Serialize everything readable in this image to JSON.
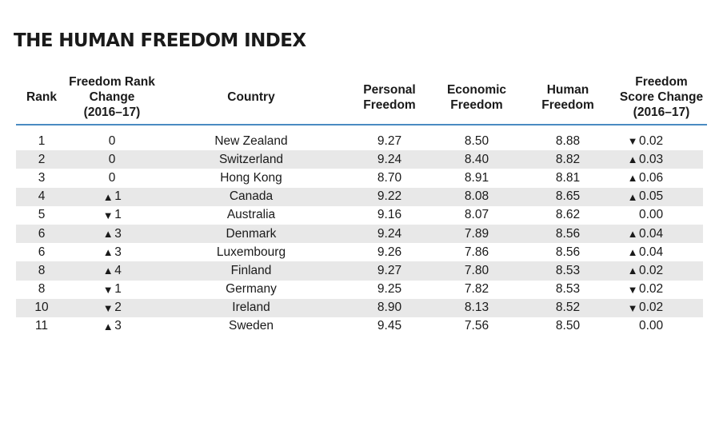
{
  "title": "THE HUMAN FREEDOM INDEX",
  "headers": {
    "rank": "Rank",
    "rank_change": "Freedom Rank\nChange\n(2016–17)",
    "country": "Country",
    "personal": "Personal\nFreedom",
    "economic": "Economic\nFreedom",
    "human": "Human\nFreedom",
    "score_change": "Freedom\nScore Change\n(2016–17)"
  },
  "accent_color": "#4a8bc2",
  "stripe_color": "#e8e8e8",
  "rows": [
    {
      "rank": "1",
      "rank_dir": "",
      "rank_change": "0",
      "country": "New Zealand",
      "personal": "9.27",
      "economic": "8.50",
      "human": "8.88",
      "score_dir": "down",
      "score_change": "0.02"
    },
    {
      "rank": "2",
      "rank_dir": "",
      "rank_change": "0",
      "country": "Switzerland",
      "personal": "9.24",
      "economic": "8.40",
      "human": "8.82",
      "score_dir": "up",
      "score_change": "0.03"
    },
    {
      "rank": "3",
      "rank_dir": "",
      "rank_change": "0",
      "country": "Hong Kong",
      "personal": "8.70",
      "economic": "8.91",
      "human": "8.81",
      "score_dir": "up",
      "score_change": "0.06"
    },
    {
      "rank": "4",
      "rank_dir": "up",
      "rank_change": "1",
      "country": "Canada",
      "personal": "9.22",
      "economic": "8.08",
      "human": "8.65",
      "score_dir": "up",
      "score_change": "0.05"
    },
    {
      "rank": "5",
      "rank_dir": "down",
      "rank_change": "1",
      "country": "Australia",
      "personal": "9.16",
      "economic": "8.07",
      "human": "8.62",
      "score_dir": "",
      "score_change": "0.00"
    },
    {
      "rank": "6",
      "rank_dir": "up",
      "rank_change": "3",
      "country": "Denmark",
      "personal": "9.24",
      "economic": "7.89",
      "human": "8.56",
      "score_dir": "up",
      "score_change": "0.04"
    },
    {
      "rank": "6",
      "rank_dir": "up",
      "rank_change": "3",
      "country": "Luxembourg",
      "personal": "9.26",
      "economic": "7.86",
      "human": "8.56",
      "score_dir": "up",
      "score_change": "0.04"
    },
    {
      "rank": "8",
      "rank_dir": "up",
      "rank_change": "4",
      "country": "Finland",
      "personal": "9.27",
      "economic": "7.80",
      "human": "8.53",
      "score_dir": "up",
      "score_change": "0.02"
    },
    {
      "rank": "8",
      "rank_dir": "down",
      "rank_change": "1",
      "country": "Germany",
      "personal": "9.25",
      "economic": "7.82",
      "human": "8.53",
      "score_dir": "down",
      "score_change": "0.02"
    },
    {
      "rank": "10",
      "rank_dir": "down",
      "rank_change": "2",
      "country": "Ireland",
      "personal": "8.90",
      "economic": "8.13",
      "human": "8.52",
      "score_dir": "down",
      "score_change": "0.02"
    },
    {
      "rank": "11",
      "rank_dir": "up",
      "rank_change": "3",
      "country": "Sweden",
      "personal": "9.45",
      "economic": "7.56",
      "human": "8.50",
      "score_dir": "",
      "score_change": "0.00"
    }
  ]
}
